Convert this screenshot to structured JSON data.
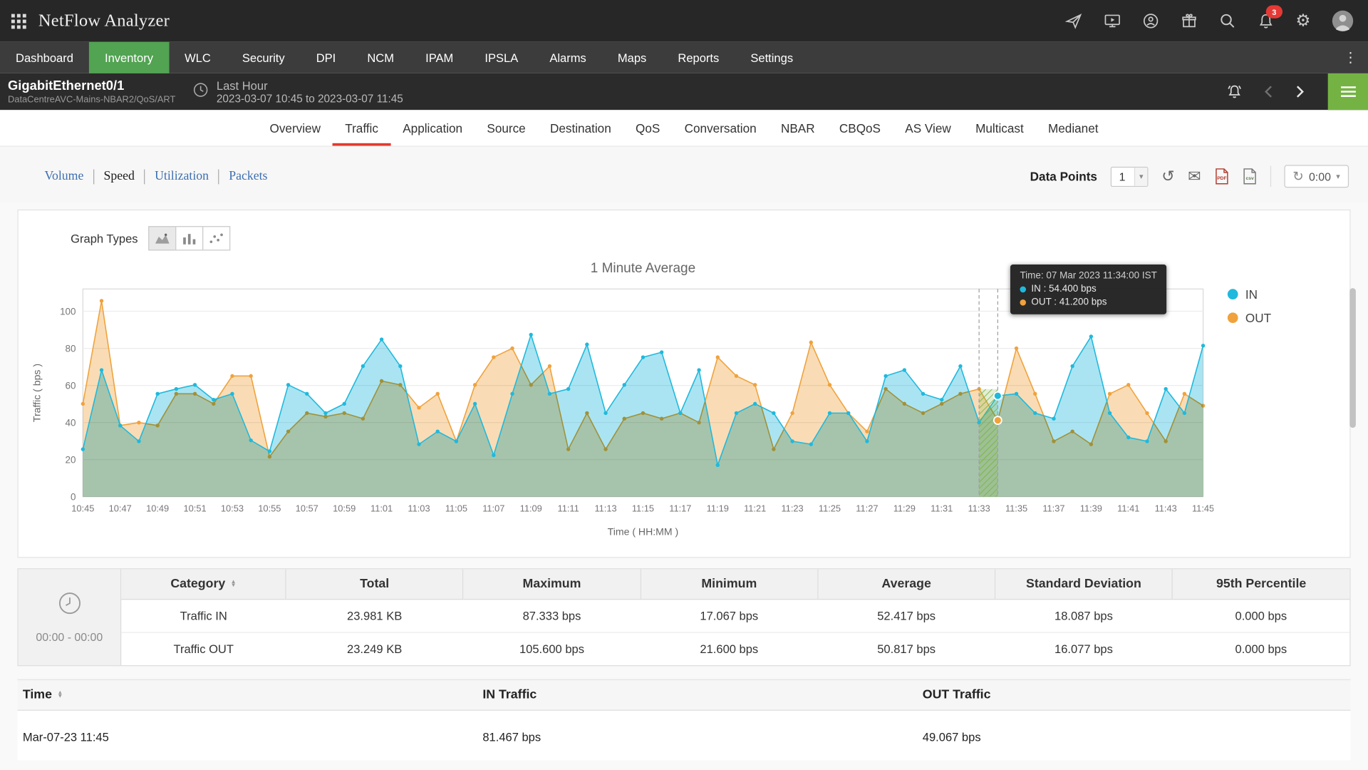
{
  "header": {
    "app_title": "NetFlow Analyzer",
    "notification_count": "3"
  },
  "nav": {
    "items": [
      {
        "label": "Dashboard"
      },
      {
        "label": "Inventory",
        "active": true
      },
      {
        "label": "WLC"
      },
      {
        "label": "Security"
      },
      {
        "label": "DPI"
      },
      {
        "label": "NCM"
      },
      {
        "label": "IPAM"
      },
      {
        "label": "IPSLA"
      },
      {
        "label": "Alarms"
      },
      {
        "label": "Maps"
      },
      {
        "label": "Reports"
      },
      {
        "label": "Settings"
      }
    ]
  },
  "subheader": {
    "interface_name": "GigabitEthernet0/1",
    "interface_path": "DataCentreAVC-Mains-NBAR2/QoS/ART",
    "period_label": "Last Hour",
    "period_range": "2023-03-07 10:45 to 2023-03-07 11:45"
  },
  "tabs": {
    "items": [
      {
        "label": "Overview"
      },
      {
        "label": "Traffic",
        "active": true
      },
      {
        "label": "Application"
      },
      {
        "label": "Source"
      },
      {
        "label": "Destination"
      },
      {
        "label": "QoS"
      },
      {
        "label": "Conversation"
      },
      {
        "label": "NBAR"
      },
      {
        "label": "CBQoS"
      },
      {
        "label": "AS View"
      },
      {
        "label": "Multicast"
      },
      {
        "label": "Medianet"
      }
    ]
  },
  "toolbar": {
    "views": [
      {
        "label": "Volume"
      },
      {
        "label": "Speed",
        "active": true
      },
      {
        "label": "Utilization"
      },
      {
        "label": "Packets"
      }
    ],
    "data_points_label": "Data Points",
    "data_points_value": "1",
    "refresh_value": "0:00",
    "pdf_label": "PDF",
    "csv_label": "csv"
  },
  "chart": {
    "graph_types_label": "Graph Types",
    "title": "1 Minute Average",
    "legend": [
      {
        "label": "IN",
        "color": "#1fb9dd"
      },
      {
        "label": "OUT",
        "color": "#f0a23c"
      }
    ],
    "tooltip": {
      "time": "Time: 07 Mar 2023 11:34:00 IST",
      "in": "IN : 54.400 bps",
      "out": "OUT : 41.200 bps"
    }
  },
  "chart_data": {
    "type": "area",
    "title": "1 Minute Average",
    "xlabel": "Time ( HH:MM )",
    "ylabel": "Traffic ( bps )",
    "ylim": [
      0,
      112
    ],
    "yticks": [
      0,
      20,
      40,
      60,
      80,
      100
    ],
    "xtick_every": 2,
    "highlight_index": 49,
    "x": [
      "10:45",
      "10:46",
      "10:47",
      "10:48",
      "10:49",
      "10:50",
      "10:51",
      "10:52",
      "10:53",
      "10:54",
      "10:55",
      "10:56",
      "10:57",
      "10:58",
      "10:59",
      "11:00",
      "11:01",
      "11:02",
      "11:03",
      "11:04",
      "11:05",
      "11:06",
      "11:07",
      "11:08",
      "11:09",
      "11:10",
      "11:11",
      "11:12",
      "11:13",
      "11:14",
      "11:15",
      "11:16",
      "11:17",
      "11:18",
      "11:19",
      "11:20",
      "11:21",
      "11:22",
      "11:23",
      "11:24",
      "11:25",
      "11:26",
      "11:27",
      "11:28",
      "11:29",
      "11:30",
      "11:31",
      "11:32",
      "11:33",
      "11:34",
      "11:35",
      "11:36",
      "11:37",
      "11:38",
      "11:39",
      "11:40",
      "11:41",
      "11:42",
      "11:43",
      "11:44",
      "11:45"
    ],
    "series": [
      {
        "name": "IN",
        "color": "#1fb9dd",
        "values": [
          25.6,
          68.3,
          38.4,
          29.9,
          55.5,
          58.1,
          60.3,
          52.3,
          55.5,
          30.4,
          24.5,
          60.3,
          55.5,
          45.1,
          50.1,
          70.4,
          84.8,
          70.4,
          28.3,
          35.2,
          29.9,
          50.1,
          22.4,
          55.5,
          87.333,
          55.5,
          58.1,
          82.1,
          45.1,
          60.3,
          75.2,
          77.9,
          45.1,
          68.3,
          17.067,
          45.1,
          50.1,
          45.1,
          29.9,
          28.3,
          45.1,
          45.1,
          29.9,
          65.1,
          68.3,
          55.5,
          52.3,
          70.4,
          40.0,
          54.4,
          55.5,
          45.1,
          42.1,
          70.4,
          86.4,
          45.1,
          32.0,
          29.9,
          58.1,
          45.1,
          81.467
        ]
      },
      {
        "name": "OUT",
        "color": "#f0a23c",
        "values": [
          50.1,
          105.6,
          38.4,
          40.0,
          38.4,
          55.5,
          55.5,
          50.1,
          65.1,
          65.1,
          21.6,
          35.2,
          45.1,
          43.2,
          45.1,
          42.1,
          62.4,
          60.3,
          48.0,
          55.5,
          29.9,
          60.3,
          75.2,
          80.0,
          60.3,
          70.4,
          25.6,
          45.1,
          25.6,
          42.1,
          45.1,
          42.1,
          45.1,
          40.0,
          75.2,
          65.1,
          60.3,
          25.6,
          45.1,
          83.2,
          60.3,
          45.1,
          35.2,
          58.1,
          50.1,
          45.1,
          50.1,
          55.5,
          58.1,
          41.2,
          80.0,
          55.5,
          29.9,
          35.2,
          28.3,
          55.5,
          60.3,
          45.1,
          29.9,
          55.5,
          49.067
        ]
      }
    ]
  },
  "summary_table": {
    "time_range": "00:00 - 00:00",
    "headers": [
      "Category",
      "Total",
      "Maximum",
      "Minimum",
      "Average",
      "Standard Deviation",
      "95th Percentile"
    ],
    "rows": [
      {
        "category": "Traffic IN",
        "total": "23.981 KB",
        "maximum": "87.333 bps",
        "minimum": "17.067 bps",
        "average": "52.417 bps",
        "std_dev": "18.087 bps",
        "percentile_95": "0.000 bps"
      },
      {
        "category": "Traffic OUT",
        "total": "23.249 KB",
        "maximum": "105.600 bps",
        "minimum": "21.600 bps",
        "average": "50.817 bps",
        "std_dev": "16.077 bps",
        "percentile_95": "0.000 bps"
      }
    ]
  },
  "detail_table": {
    "headers": [
      "Time",
      "IN Traffic",
      "OUT Traffic"
    ],
    "rows": [
      {
        "time": "Mar-07-23 11:45",
        "in": "81.467 bps",
        "out": "49.067 bps"
      }
    ]
  },
  "icons": {
    "gear": "⚙",
    "envelope": "✉",
    "history": "↺",
    "refresh": "↻",
    "menu_dots": "⋮",
    "caret": "▾",
    "sort_up": "▲",
    "sort_down": "▼"
  }
}
